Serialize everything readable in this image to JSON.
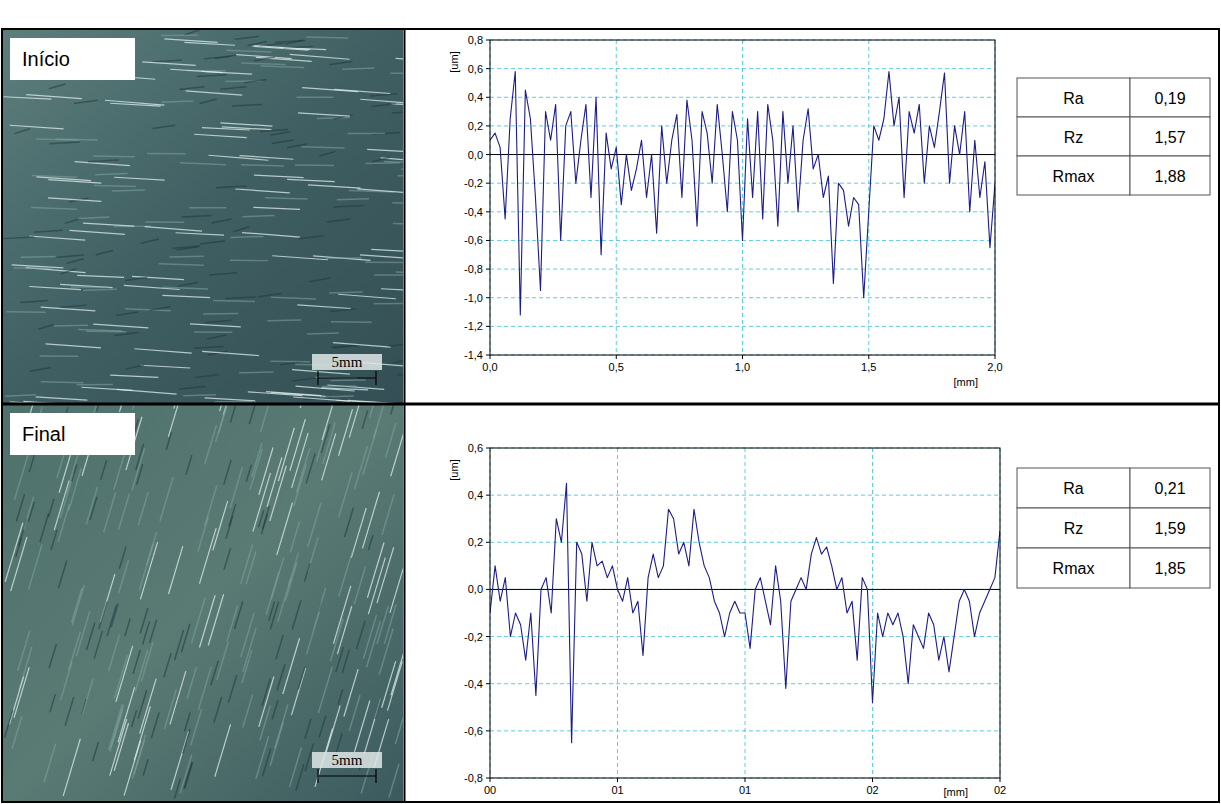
{
  "panels": [
    {
      "label": "Início",
      "scale_bar": "5mm",
      "table": {
        "rows": [
          [
            "Ra",
            "0,19"
          ],
          [
            "Rz",
            "1,57"
          ],
          [
            "Rmax",
            "1,88"
          ]
        ]
      }
    },
    {
      "label": "Final",
      "scale_bar": "5mm",
      "table": {
        "rows": [
          [
            "Ra",
            "0,21"
          ],
          [
            "Rz",
            "1,59"
          ],
          [
            "Rmax",
            "1,85"
          ]
        ]
      }
    }
  ],
  "chart_data": [
    {
      "type": "line",
      "x_label": "[mm]",
      "y_label": "[um]",
      "color": "#1c1c8a",
      "grid": true,
      "xlim": [
        0,
        2
      ],
      "ylim": [
        -1.4,
        0.8
      ],
      "xticks": [
        {
          "value": 0,
          "label": "0,0"
        },
        {
          "value": 0.5,
          "label": "0,5"
        },
        {
          "value": 1,
          "label": "1,0"
        },
        {
          "value": 1.5,
          "label": "1,5"
        },
        {
          "value": 2,
          "label": "2,0"
        }
      ],
      "yticks": [
        {
          "value": 0.8,
          "label": "0,8"
        },
        {
          "value": 0.6,
          "label": "0,6"
        },
        {
          "value": 0.4,
          "label": "0,4"
        },
        {
          "value": 0.2,
          "label": "0,2"
        },
        {
          "value": 0,
          "label": "0,0"
        },
        {
          "value": -0.2,
          "label": "-0,2"
        },
        {
          "value": -0.4,
          "label": "-0,4"
        },
        {
          "value": -0.6,
          "label": "-0,6"
        },
        {
          "value": -0.8,
          "label": "-0,8"
        },
        {
          "value": -1.0,
          "label": "-1,0"
        },
        {
          "value": -1.2,
          "label": "-1,2"
        },
        {
          "value": -1.4,
          "label": "-1,4"
        }
      ],
      "x": [
        0,
        0.02,
        0.04,
        0.06,
        0.08,
        0.1,
        0.12,
        0.14,
        0.16,
        0.18,
        0.2,
        0.22,
        0.24,
        0.26,
        0.28,
        0.3,
        0.32,
        0.34,
        0.36,
        0.38,
        0.4,
        0.42,
        0.44,
        0.46,
        0.48,
        0.5,
        0.52,
        0.54,
        0.56,
        0.58,
        0.6,
        0.62,
        0.64,
        0.66,
        0.68,
        0.7,
        0.72,
        0.74,
        0.76,
        0.78,
        0.8,
        0.82,
        0.84,
        0.86,
        0.88,
        0.9,
        0.92,
        0.94,
        0.96,
        0.98,
        1,
        1.02,
        1.04,
        1.06,
        1.08,
        1.1,
        1.12,
        1.14,
        1.16,
        1.18,
        1.2,
        1.22,
        1.24,
        1.26,
        1.28,
        1.3,
        1.32,
        1.34,
        1.36,
        1.38,
        1.4,
        1.42,
        1.44,
        1.46,
        1.48,
        1.5,
        1.52,
        1.54,
        1.56,
        1.58,
        1.6,
        1.62,
        1.64,
        1.66,
        1.68,
        1.7,
        1.72,
        1.74,
        1.76,
        1.78,
        1.8,
        1.82,
        1.84,
        1.86,
        1.88,
        1.9,
        1.92,
        1.94,
        1.96,
        1.98,
        2
      ],
      "values": [
        0.1,
        0.15,
        0.05,
        -0.45,
        0.25,
        0.58,
        -1.12,
        0.45,
        0.25,
        -0.3,
        -0.95,
        0.3,
        0.1,
        0.35,
        -0.6,
        0.2,
        0.3,
        -0.2,
        0.1,
        0.35,
        -0.3,
        0.4,
        -0.7,
        0.15,
        -0.1,
        0.05,
        -0.35,
        0,
        -0.25,
        -0.1,
        0.1,
        -0.3,
        0,
        -0.55,
        0.2,
        -0.2,
        0.1,
        0.28,
        -0.3,
        0.38,
        0.1,
        -0.5,
        0.3,
        0.15,
        -0.2,
        0.35,
        0,
        -0.4,
        0.3,
        0.1,
        -0.6,
        0.25,
        -0.3,
        0.3,
        -0.45,
        0.35,
        0.1,
        -0.5,
        0.3,
        -0.2,
        0.2,
        -0.4,
        0.1,
        0.32,
        -0.1,
        0,
        -0.3,
        -0.15,
        -0.9,
        -0.2,
        -0.25,
        -0.5,
        -0.3,
        -0.35,
        -1.0,
        -0.4,
        0.2,
        0.1,
        0.25,
        0.58,
        0.2,
        0.4,
        -0.3,
        0.3,
        0.15,
        0.35,
        -0.2,
        0.2,
        0.05,
        0.3,
        0.57,
        -0.2,
        0.2,
        0,
        0.3,
        -0.4,
        0.1,
        -0.3,
        -0.05,
        -0.65,
        -0.2
      ]
    },
    {
      "type": "line",
      "x_label": "[mm]",
      "y_label": "[um]",
      "color": "#1c1c8a",
      "grid": true,
      "xlim": [
        0,
        2
      ],
      "ylim": [
        -0.8,
        0.6
      ],
      "xticks": [
        {
          "value": 0,
          "label": "00"
        },
        {
          "value": 0.5,
          "label": "01"
        },
        {
          "value": 1,
          "label": "01"
        },
        {
          "value": 1.5,
          "label": "02"
        },
        {
          "value": 2,
          "label": "02"
        }
      ],
      "yticks": [
        {
          "value": 0.6,
          "label": "0,6"
        },
        {
          "value": 0.4,
          "label": "0,4"
        },
        {
          "value": 0.2,
          "label": "0,2"
        },
        {
          "value": 0,
          "label": "0,0"
        },
        {
          "value": -0.2,
          "label": "-0,2"
        },
        {
          "value": -0.4,
          "label": "-0,4"
        },
        {
          "value": -0.6,
          "label": "-0,6"
        },
        {
          "value": -0.8,
          "label": "-0,8"
        }
      ],
      "x": [
        0,
        0.02,
        0.04,
        0.06,
        0.08,
        0.1,
        0.12,
        0.14,
        0.16,
        0.18,
        0.2,
        0.22,
        0.24,
        0.26,
        0.28,
        0.3,
        0.32,
        0.34,
        0.36,
        0.38,
        0.4,
        0.42,
        0.44,
        0.46,
        0.48,
        0.5,
        0.52,
        0.54,
        0.56,
        0.58,
        0.6,
        0.62,
        0.64,
        0.66,
        0.68,
        0.7,
        0.72,
        0.74,
        0.76,
        0.78,
        0.8,
        0.82,
        0.84,
        0.86,
        0.88,
        0.9,
        0.92,
        0.94,
        0.96,
        0.98,
        1,
        1.02,
        1.04,
        1.06,
        1.08,
        1.1,
        1.12,
        1.14,
        1.16,
        1.18,
        1.2,
        1.22,
        1.24,
        1.26,
        1.28,
        1.3,
        1.32,
        1.34,
        1.36,
        1.38,
        1.4,
        1.42,
        1.44,
        1.46,
        1.48,
        1.5,
        1.52,
        1.54,
        1.56,
        1.58,
        1.6,
        1.62,
        1.64,
        1.66,
        1.68,
        1.7,
        1.72,
        1.74,
        1.76,
        1.78,
        1.8,
        1.82,
        1.84,
        1.86,
        1.88,
        1.9,
        1.92,
        1.94,
        1.96,
        1.98,
        2
      ],
      "values": [
        -0.1,
        0.1,
        -0.05,
        0.05,
        -0.2,
        -0.1,
        -0.15,
        -0.3,
        -0.1,
        -0.45,
        0,
        0.05,
        -0.1,
        0.3,
        0.2,
        0.45,
        -0.65,
        0.2,
        0.15,
        -0.05,
        0.2,
        0.1,
        0.12,
        0.05,
        0.1,
        0,
        -0.05,
        0.05,
        -0.1,
        -0.05,
        -0.28,
        0.05,
        0.15,
        0.05,
        0.1,
        0.34,
        0.3,
        0.15,
        0.2,
        0.1,
        0.34,
        0.2,
        0.1,
        0.05,
        -0.05,
        -0.1,
        -0.2,
        -0.1,
        -0.05,
        -0.1,
        -0.1,
        -0.25,
        0,
        0.05,
        -0.05,
        -0.15,
        0.1,
        -0.05,
        -0.42,
        -0.05,
        0,
        0.05,
        0,
        0.15,
        0.22,
        0.15,
        0.18,
        0.1,
        0,
        0.05,
        -0.1,
        -0.05,
        -0.3,
        0.05,
        0,
        -0.48,
        -0.1,
        -0.2,
        -0.1,
        -0.15,
        -0.1,
        -0.2,
        -0.4,
        -0.15,
        -0.2,
        -0.25,
        -0.1,
        -0.15,
        -0.3,
        -0.2,
        -0.35,
        -0.2,
        -0.05,
        0,
        -0.05,
        -0.2,
        -0.1,
        -0.05,
        0,
        0.05,
        0.25
      ]
    }
  ]
}
